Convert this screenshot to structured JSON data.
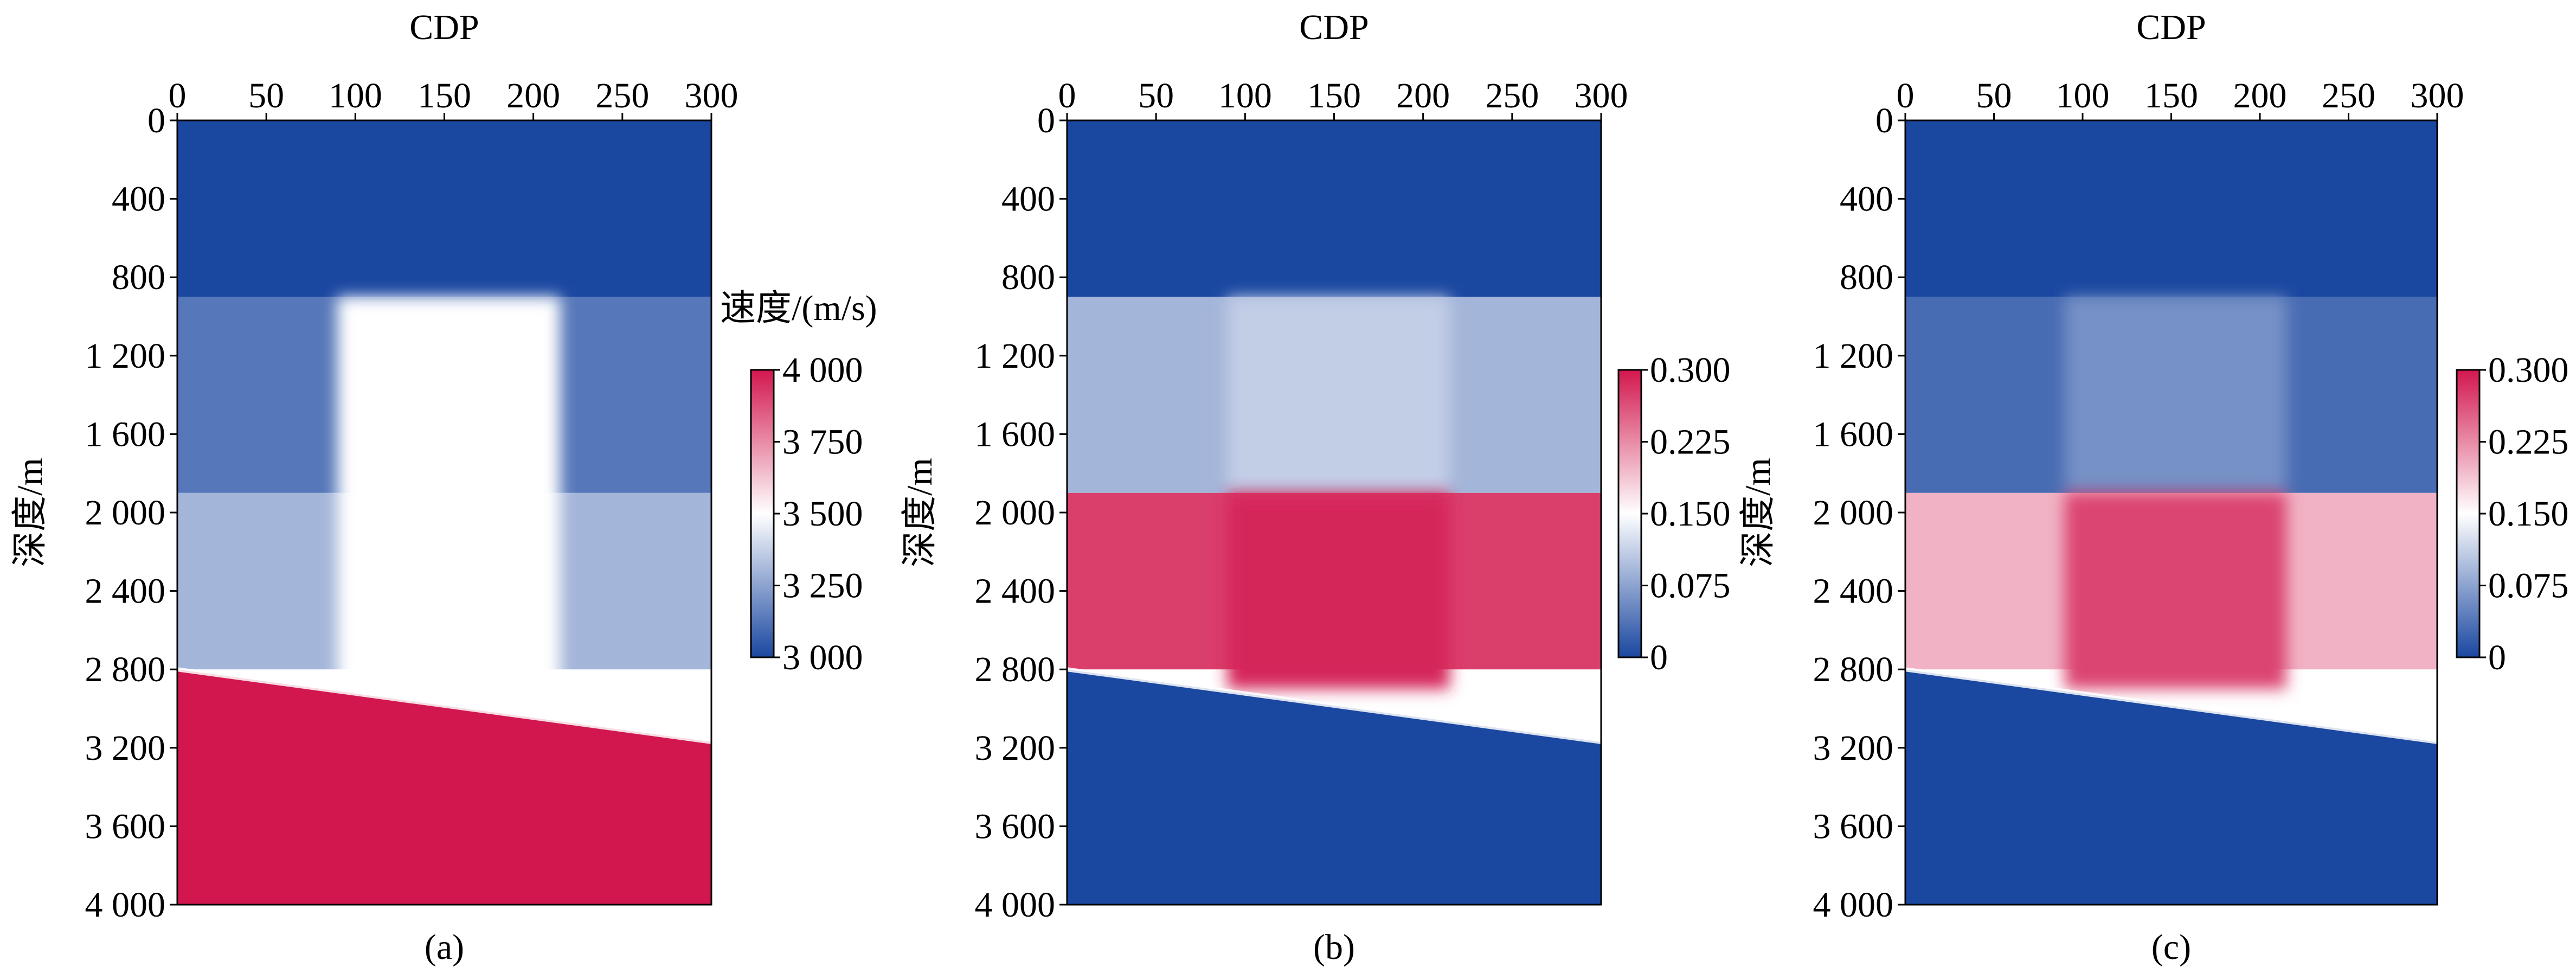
{
  "chart_data": [
    {
      "type": "heatmap",
      "panel_label": "(a)",
      "xlabel": "CDP",
      "ylabel": "深度/m",
      "xlim": [
        0,
        300
      ],
      "ylim": [
        0,
        4000
      ],
      "y_inverted": true,
      "x_ticks": [
        "0",
        "50",
        "100",
        "150",
        "200",
        "250",
        "300"
      ],
      "y_ticks": [
        "0",
        "400",
        "800",
        "1 200",
        "1 600",
        "2 000",
        "2 400",
        "2 800",
        "3 200",
        "3 600",
        "4 000"
      ],
      "colorbar": {
        "title": "速度/(m/s)",
        "range": [
          3000,
          4000
        ],
        "ticks": [
          "4 000",
          "3 750",
          "3 500",
          "3 250",
          "3 000"
        ],
        "colors": [
          "#1a47a0",
          "#ffffff",
          "#d2174e"
        ]
      },
      "layers": [
        {
          "region": "top layer",
          "depth_range": [
            0,
            900
          ],
          "value": 3000
        },
        {
          "region": "second layer",
          "depth_range": [
            900,
            1900
          ],
          "value": 3130
        },
        {
          "region": "third layer",
          "depth_range": [
            1900,
            2800
          ],
          "value": 3300
        },
        {
          "region": "central anomaly",
          "cdp_range": [
            90,
            215
          ],
          "depth_range": [
            900,
            2900
          ],
          "value": 3500
        },
        {
          "region": "bottom layer below dipping interface",
          "interface_depth_at_cdp0": 2800,
          "interface_depth_at_cdp300": 3170,
          "value": 4000
        }
      ]
    },
    {
      "type": "heatmap",
      "panel_label": "(b)",
      "xlabel": "CDP",
      "ylabel": "深度/m",
      "xlim": [
        0,
        300
      ],
      "ylim": [
        0,
        4000
      ],
      "y_inverted": true,
      "x_ticks": [
        "0",
        "50",
        "100",
        "150",
        "200",
        "250",
        "300"
      ],
      "y_ticks": [
        "0",
        "400",
        "800",
        "1 200",
        "1 600",
        "2 000",
        "2 400",
        "2 800",
        "3 200",
        "3 600",
        "4 000"
      ],
      "colorbar": {
        "title": "",
        "range": [
          0,
          0.3
        ],
        "ticks": [
          "0.300",
          "0.225",
          "0.150",
          "0.075",
          "0"
        ],
        "colors": [
          "#1a47a0",
          "#ffffff",
          "#d2174e"
        ]
      },
      "layers": [
        {
          "region": "top layer",
          "depth_range": [
            0,
            900
          ],
          "value": 0.0
        },
        {
          "region": "second layer",
          "depth_range": [
            900,
            1900
          ],
          "value": 0.09
        },
        {
          "region": "central anomaly upper",
          "cdp_range": [
            90,
            215
          ],
          "depth_range": [
            900,
            1900
          ],
          "value": 0.11
        },
        {
          "region": "third layer",
          "depth_range": [
            1900,
            2800
          ],
          "value": 0.275
        },
        {
          "region": "central anomaly lower",
          "cdp_range": [
            90,
            215
          ],
          "depth_range": [
            1900,
            2900
          ],
          "value": 0.29
        },
        {
          "region": "bottom layer below dipping interface",
          "interface_depth_at_cdp0": 2800,
          "interface_depth_at_cdp300": 3170,
          "value": 0.0
        }
      ]
    },
    {
      "type": "heatmap",
      "panel_label": "(c)",
      "xlabel": "CDP",
      "ylabel": "深度/m",
      "xlim": [
        0,
        300
      ],
      "ylim": [
        0,
        4000
      ],
      "y_inverted": true,
      "x_ticks": [
        "0",
        "50",
        "100",
        "150",
        "200",
        "250",
        "300"
      ],
      "y_ticks": [
        "0",
        "400",
        "800",
        "1 200",
        "1 600",
        "2 000",
        "2 400",
        "2 800",
        "3 200",
        "3 600",
        "4 000"
      ],
      "colorbar": {
        "title": "",
        "range": [
          0,
          0.3
        ],
        "ticks": [
          "0.300",
          "0.225",
          "0.150",
          "0.075",
          "0"
        ],
        "colors": [
          "#1a47a0",
          "#ffffff",
          "#d2174e"
        ]
      },
      "layers": [
        {
          "region": "top layer",
          "depth_range": [
            0,
            900
          ],
          "value": 0.0
        },
        {
          "region": "second layer",
          "depth_range": [
            900,
            1900
          ],
          "value": 0.03
        },
        {
          "region": "central anomaly upper",
          "cdp_range": [
            90,
            215
          ],
          "depth_range": [
            900,
            1900
          ],
          "value": 0.06
        },
        {
          "region": "third layer",
          "depth_range": [
            1900,
            2800
          ],
          "value": 0.2
        },
        {
          "region": "central anomaly lower",
          "cdp_range": [
            90,
            215
          ],
          "depth_range": [
            1900,
            2900
          ],
          "value": 0.27
        },
        {
          "region": "bottom layer below dipping interface",
          "interface_depth_at_cdp0": 2800,
          "interface_depth_at_cdp300": 3170,
          "value": 0.0
        }
      ]
    }
  ]
}
